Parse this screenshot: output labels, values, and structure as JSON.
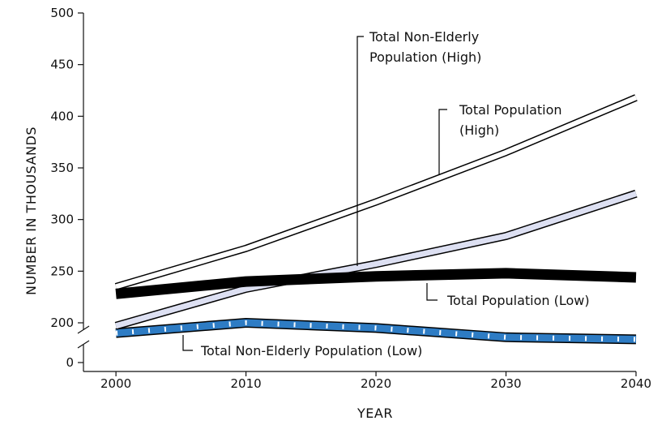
{
  "chart_data": {
    "type": "line",
    "title": "",
    "xlabel": "YEAR",
    "ylabel": "NUMBER IN THOUSANDS",
    "x": [
      2000,
      2010,
      2020,
      2030,
      2040
    ],
    "xlim": [
      1997.5,
      2040
    ],
    "ylim": [
      185,
      500
    ],
    "axis_break": true,
    "x_ticks": [
      "2000",
      "2010",
      "2020",
      "2030",
      "2040"
    ],
    "y_ticks": [
      "0",
      "200",
      "250",
      "300",
      "350",
      "400",
      "450",
      "500"
    ],
    "grid": false,
    "legend": "none (series labeled by callout annotations)",
    "series": [
      {
        "name": "Total Non-Elderly\nPopulation (High)",
        "values": [
          235,
          272,
          317,
          365,
          418
        ],
        "style": "white band with black outline"
      },
      {
        "name": "Total Population\n(High)",
        "values": [
          197,
          233,
          257,
          284,
          325
        ],
        "style": "light lavender band with black outline",
        "color": "#dde0f2"
      },
      {
        "name": "Total Population (Low)",
        "values": [
          228,
          240,
          245,
          248,
          244
        ],
        "style": "thick black line",
        "color": "#000000"
      },
      {
        "name": "Total Non-Elderly Population (Low)",
        "values": [
          190,
          200,
          195,
          186,
          184
        ],
        "style": "blue band with white dashes, black outline",
        "color": "#2e7cc4"
      }
    ]
  }
}
